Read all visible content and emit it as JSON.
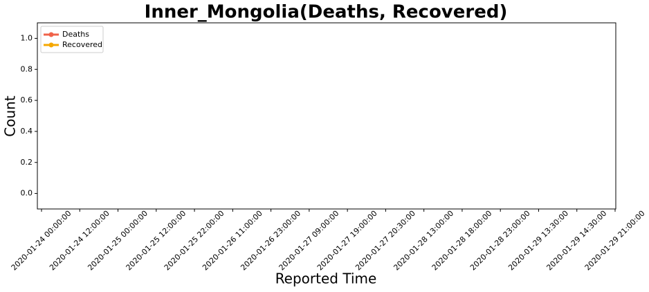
{
  "chart_data": {
    "type": "line",
    "title": "Inner_Mongolia(Deaths, Recovered)",
    "xlabel": "Reported Time",
    "ylabel": "Count",
    "categories": [
      "2020-01-24 00:00:00",
      "2020-01-24 12:00:00",
      "2020-01-25 00:00:00",
      "2020-01-25 12:00:00",
      "2020-01-25 22:00:00",
      "2020-01-26 11:00:00",
      "2020-01-26 23:00:00",
      "2020-01-27 09:00:00",
      "2020-01-27 19:00:00",
      "2020-01-27 20:30:00",
      "2020-01-28 13:00:00",
      "2020-01-28 18:00:00",
      "2020-01-28 23:00:00",
      "2020-01-29 13:30:00",
      "2020-01-29 14:30:00",
      "2020-01-29 21:00:00"
    ],
    "series": [
      {
        "name": "Deaths",
        "color": "#f0634a",
        "values": [
          null,
          null,
          null,
          null,
          null,
          null,
          null,
          null,
          null,
          null,
          null,
          null,
          null,
          null,
          null,
          null
        ]
      },
      {
        "name": "Recovered",
        "color": "#f5a700",
        "values": [
          null,
          null,
          null,
          null,
          null,
          null,
          null,
          null,
          null,
          null,
          null,
          null,
          null,
          null,
          null,
          null
        ]
      }
    ],
    "ylim": [
      -0.1,
      1.1
    ],
    "yticks": [
      {
        "value": 0,
        "label": "0.0"
      },
      0.2,
      0.4,
      0.6,
      0.8,
      {
        "value": 1,
        "label": "1.0"
      }
    ],
    "legend": "upper left",
    "grid": false
  }
}
